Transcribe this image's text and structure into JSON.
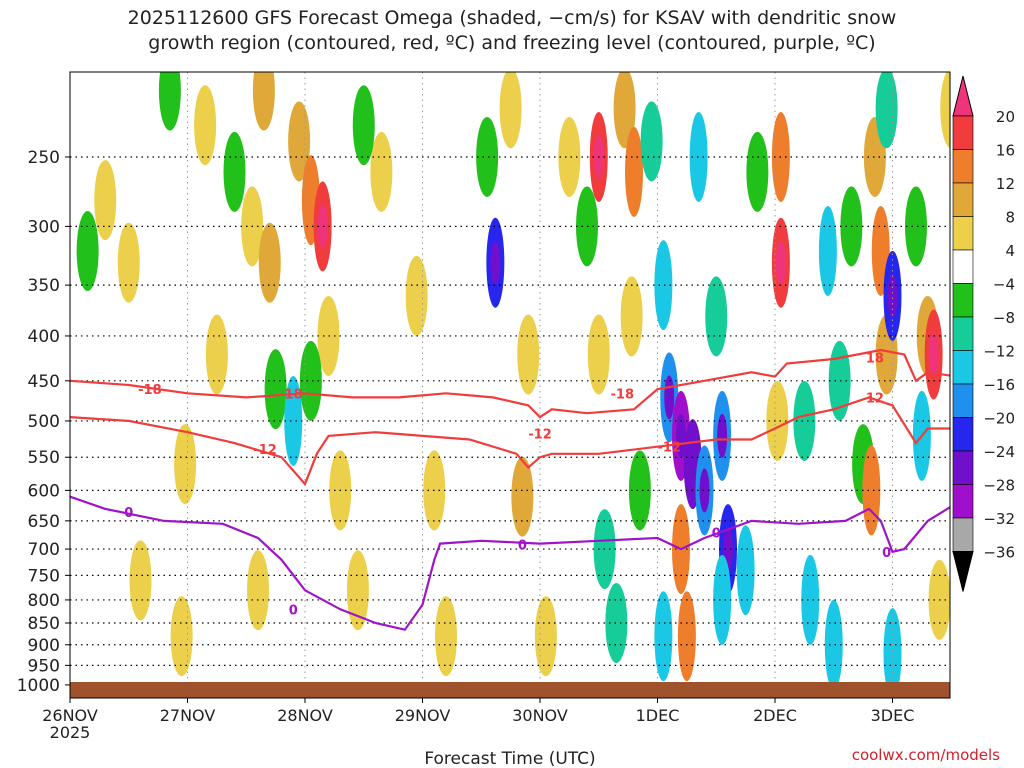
{
  "title": {
    "line1": "2025112600 GFS Forecast Omega (shaded, −cm/s) for KSAV with dendritic snow",
    "line2": "growth region (contoured, red, ºC) and freezing level (contoured, purple, ºC)"
  },
  "credit": "coolwx.com/models",
  "chart_data": {
    "type": "heatmap",
    "xlabel": "Forecast Time (UTC)",
    "ylabel": "",
    "x_ticks": [
      "26NOV",
      "27NOV",
      "28NOV",
      "29NOV",
      "30NOV",
      "1DEC",
      "2DEC",
      "3DEC"
    ],
    "x_year_label": "2025",
    "x_range_days": [
      0,
      7.55
    ],
    "y_axis": "pressure (hPa), log scale, inverted",
    "y_range": [
      1035,
      200
    ],
    "y_ticks": [
      250,
      300,
      350,
      400,
      450,
      500,
      550,
      600,
      650,
      700,
      750,
      800,
      850,
      900,
      950,
      1000
    ],
    "grid": true,
    "colorbar": {
      "labels": [
        "20",
        "16",
        "12",
        "8",
        "4",
        "−4",
        "−8",
        "−12",
        "−16",
        "−20",
        "−24",
        "−28",
        "−32",
        "−36"
      ],
      "colors": [
        "#f0347c",
        "#f03c3c",
        "#ee7d2c",
        "#e0a838",
        "#eccf4a",
        "#ffffff",
        "#22c01a",
        "#16cc98",
        "#1ac8e6",
        "#2090ee",
        "#2626ee",
        "#7010cc",
        "#a010cc",
        "#a8a8a8",
        "#000000"
      ],
      "top_color": "#f0347c",
      "bottom_color": "#000000"
    },
    "omega_cells": [
      {
        "t": 0.3,
        "p": 280,
        "v": 5
      },
      {
        "t": 0.5,
        "p": 330,
        "v": 5
      },
      {
        "t": 0.15,
        "p": 320,
        "v": -6
      },
      {
        "t": 0.85,
        "p": 210,
        "v": -6
      },
      {
        "t": 1.15,
        "p": 230,
        "v": 5
      },
      {
        "t": 1.25,
        "p": 420,
        "v": 5
      },
      {
        "t": 0.98,
        "p": 560,
        "v": 5
      },
      {
        "t": 0.95,
        "p": 880,
        "v": 5
      },
      {
        "t": 0.6,
        "p": 760,
        "v": 5
      },
      {
        "t": 1.4,
        "p": 260,
        "v": -6
      },
      {
        "t": 1.55,
        "p": 300,
        "v": 5
      },
      {
        "t": 1.7,
        "p": 330,
        "v": 8
      },
      {
        "t": 1.65,
        "p": 210,
        "v": 9
      },
      {
        "t": 1.75,
        "p": 460,
        "v": -6
      },
      {
        "t": 1.9,
        "p": 500,
        "v": -12
      },
      {
        "t": 1.6,
        "p": 780,
        "v": 5
      },
      {
        "t": 1.95,
        "p": 240,
        "v": 9
      },
      {
        "t": 2.05,
        "p": 280,
        "v": 13
      },
      {
        "t": 2.15,
        "p": 300,
        "v": 17
      },
      {
        "t": 2.2,
        "p": 400,
        "v": 7
      },
      {
        "t": 2.05,
        "p": 450,
        "v": -6
      },
      {
        "t": 2.3,
        "p": 600,
        "v": 5
      },
      {
        "t": 2.45,
        "p": 780,
        "v": 5
      },
      {
        "t": 2.65,
        "p": 260,
        "v": 5
      },
      {
        "t": 2.5,
        "p": 230,
        "v": -6
      },
      {
        "t": 2.95,
        "p": 360,
        "v": 5
      },
      {
        "t": 3.1,
        "p": 600,
        "v": 5
      },
      {
        "t": 3.2,
        "p": 880,
        "v": 5
      },
      {
        "t": 3.55,
        "p": 250,
        "v": -6
      },
      {
        "t": 3.62,
        "p": 330,
        "v": -20
      },
      {
        "t": 3.75,
        "p": 220,
        "v": 5
      },
      {
        "t": 3.9,
        "p": 420,
        "v": 5
      },
      {
        "t": 3.85,
        "p": 610,
        "v": 9
      },
      {
        "t": 4.05,
        "p": 880,
        "v": 5
      },
      {
        "t": 4.25,
        "p": 250,
        "v": 5
      },
      {
        "t": 4.4,
        "p": 300,
        "v": -6
      },
      {
        "t": 4.5,
        "p": 250,
        "v": 18
      },
      {
        "t": 4.5,
        "p": 420,
        "v": 5
      },
      {
        "t": 4.55,
        "p": 700,
        "v": -8
      },
      {
        "t": 4.65,
        "p": 850,
        "v": -8
      },
      {
        "t": 4.72,
        "p": 220,
        "v": 9
      },
      {
        "t": 4.8,
        "p": 260,
        "v": 13
      },
      {
        "t": 4.78,
        "p": 380,
        "v": 5
      },
      {
        "t": 4.85,
        "p": 600,
        "v": -6
      },
      {
        "t": 4.95,
        "p": 240,
        "v": -8
      },
      {
        "t": 5.05,
        "p": 350,
        "v": -12
      },
      {
        "t": 5.1,
        "p": 470,
        "v": -16
      },
      {
        "t": 5.2,
        "p": 520,
        "v": -28
      },
      {
        "t": 5.3,
        "p": 560,
        "v": -24
      },
      {
        "t": 5.4,
        "p": 600,
        "v": -16
      },
      {
        "t": 5.2,
        "p": 700,
        "v": 14
      },
      {
        "t": 5.25,
        "p": 880,
        "v": 12
      },
      {
        "t": 5.05,
        "p": 880,
        "v": -12
      },
      {
        "t": 5.35,
        "p": 250,
        "v": -12
      },
      {
        "t": 5.5,
        "p": 380,
        "v": -8
      },
      {
        "t": 5.55,
        "p": 520,
        "v": -16
      },
      {
        "t": 5.6,
        "p": 700,
        "v": -20
      },
      {
        "t": 5.55,
        "p": 800,
        "v": -12
      },
      {
        "t": 5.75,
        "p": 740,
        "v": -12
      },
      {
        "t": 5.85,
        "p": 260,
        "v": -6
      },
      {
        "t": 6.05,
        "p": 250,
        "v": 13
      },
      {
        "t": 6.05,
        "p": 330,
        "v": 18
      },
      {
        "t": 6.02,
        "p": 500,
        "v": 5
      },
      {
        "t": 6.25,
        "p": 500,
        "v": -8
      },
      {
        "t": 6.3,
        "p": 800,
        "v": -12
      },
      {
        "t": 6.45,
        "p": 320,
        "v": -12
      },
      {
        "t": 6.55,
        "p": 450,
        "v": -8
      },
      {
        "t": 6.5,
        "p": 900,
        "v": -12
      },
      {
        "t": 6.65,
        "p": 300,
        "v": -6
      },
      {
        "t": 6.75,
        "p": 560,
        "v": -6
      },
      {
        "t": 6.82,
        "p": 600,
        "v": 14
      },
      {
        "t": 6.85,
        "p": 250,
        "v": 9
      },
      {
        "t": 6.9,
        "p": 320,
        "v": 13
      },
      {
        "t": 6.95,
        "p": 420,
        "v": 9
      },
      {
        "t": 6.95,
        "p": 220,
        "v": -8
      },
      {
        "t": 7.0,
        "p": 360,
        "v": -20
      },
      {
        "t": 7.0,
        "p": 920,
        "v": -12
      },
      {
        "t": 7.2,
        "p": 300,
        "v": -6
      },
      {
        "t": 7.25,
        "p": 520,
        "v": -12
      },
      {
        "t": 7.3,
        "p": 400,
        "v": 9
      },
      {
        "t": 7.35,
        "p": 420,
        "v": 18
      },
      {
        "t": 7.4,
        "p": 800,
        "v": 5
      },
      {
        "t": 7.5,
        "p": 220,
        "v": 5
      }
    ],
    "series": [
      {
        "name": "-18",
        "color": "#f03c3c",
        "t": [
          0,
          0.5,
          1.0,
          1.5,
          2.0,
          2.4,
          2.8,
          3.2,
          3.6,
          3.9,
          4.0,
          4.1,
          4.4,
          4.8,
          5.0,
          5.4,
          5.8,
          6.0,
          6.1,
          6.5,
          6.9,
          7.1,
          7.2,
          7.3,
          7.55
        ],
        "p": [
          450,
          455,
          465,
          470,
          465,
          470,
          470,
          465,
          470,
          480,
          495,
          485,
          490,
          485,
          460,
          450,
          440,
          445,
          430,
          425,
          415,
          420,
          450,
          440,
          445
        ]
      },
      {
        "name": "-12",
        "color": "#f03c3c",
        "t": [
          0,
          0.5,
          1.0,
          1.4,
          1.8,
          2.0,
          2.1,
          2.2,
          2.6,
          3.0,
          3.4,
          3.8,
          3.9,
          4.0,
          4.1,
          4.5,
          5.0,
          5.5,
          5.8,
          6.0,
          6.2,
          6.5,
          6.8,
          7.0,
          7.2,
          7.3,
          7.55
        ],
        "p": [
          495,
          500,
          515,
          530,
          550,
          590,
          545,
          520,
          515,
          520,
          525,
          545,
          565,
          550,
          545,
          545,
          535,
          525,
          525,
          510,
          495,
          485,
          470,
          480,
          530,
          510,
          510
        ]
      },
      {
        "name": "0",
        "color": "#a014c8",
        "t": [
          0,
          0.3,
          0.8,
          1.3,
          1.6,
          1.8,
          2.0,
          2.3,
          2.6,
          2.85,
          3.0,
          3.1,
          3.15,
          3.5,
          4.0,
          4.5,
          5.0,
          5.2,
          5.4,
          5.6,
          5.8,
          6.2,
          6.6,
          6.8,
          6.9,
          7.0,
          7.1,
          7.3,
          7.55
        ],
        "p": [
          610,
          630,
          650,
          655,
          680,
          720,
          780,
          820,
          850,
          865,
          810,
          720,
          690,
          685,
          690,
          685,
          680,
          700,
          680,
          665,
          650,
          655,
          650,
          630,
          650,
          705,
          700,
          650,
          620
        ]
      }
    ],
    "contour_labels": [
      {
        "text": "-18",
        "t": 0.68,
        "p": 460
      },
      {
        "text": "-18",
        "t": 1.88,
        "p": 465
      },
      {
        "text": "-18",
        "t": 4.7,
        "p": 465
      },
      {
        "text": "18",
        "t": 6.85,
        "p": 423
      },
      {
        "text": "12",
        "t": 6.85,
        "p": 470
      },
      {
        "text": "-12",
        "t": 1.66,
        "p": 538
      },
      {
        "text": "-12",
        "t": 4.0,
        "p": 517
      },
      {
        "text": "-12",
        "t": 5.1,
        "p": 535
      },
      {
        "text": "0",
        "t": 0.5,
        "p": 635
      },
      {
        "text": "0",
        "t": 1.9,
        "p": 820
      },
      {
        "text": "0",
        "t": 3.85,
        "p": 692
      },
      {
        "text": "0",
        "t": 5.5,
        "p": 670
      },
      {
        "text": "0",
        "t": 6.95,
        "p": 705
      }
    ]
  }
}
